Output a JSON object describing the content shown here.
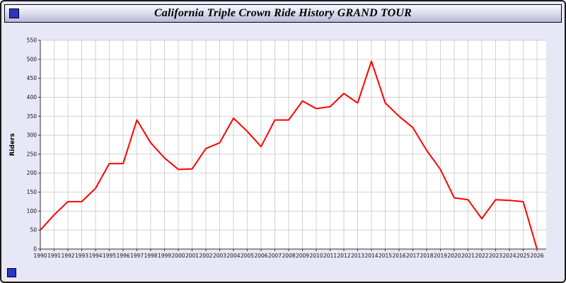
{
  "window": {
    "title": "California Triple Crown Ride History GRAND TOUR"
  },
  "icons": {
    "title_square": "blue-square-icon",
    "bottom_square": "blue-square-icon"
  },
  "colors": {
    "line": "#ff0000",
    "icon_blue": "#2b35c8",
    "page_background": "#e7e7f6",
    "plot_background": "#ffffff",
    "gridline": "#d2d2d2",
    "axis": "#333333"
  },
  "chart_data": {
    "type": "line",
    "title": "California Triple Crown Ride History GRAND TOUR",
    "xlabel": "",
    "ylabel": "Riders",
    "x": [
      1990,
      1991,
      1992,
      1993,
      1994,
      1995,
      1996,
      1997,
      1998,
      1999,
      2000,
      2001,
      2002,
      2003,
      2004,
      2005,
      2006,
      2007,
      2008,
      2009,
      2010,
      2011,
      2012,
      2013,
      2014,
      2015,
      2016,
      2017,
      2018,
      2019,
      2020,
      2021,
      2022,
      2023,
      2024,
      2025,
      2026
    ],
    "series": [
      {
        "name": "Riders",
        "values": [
          50,
          90,
          125,
          125,
          160,
          225,
          225,
          340,
          280,
          240,
          210,
          211,
          265,
          280,
          345,
          310,
          270,
          340,
          340,
          390,
          370,
          375,
          410,
          385,
          495,
          385,
          350,
          320,
          260,
          210,
          135,
          130,
          80,
          130,
          128,
          125,
          0
        ]
      }
    ],
    "ylim": [
      0,
      550
    ],
    "ytick_step": 50,
    "grid": true,
    "legend_position": "none"
  }
}
